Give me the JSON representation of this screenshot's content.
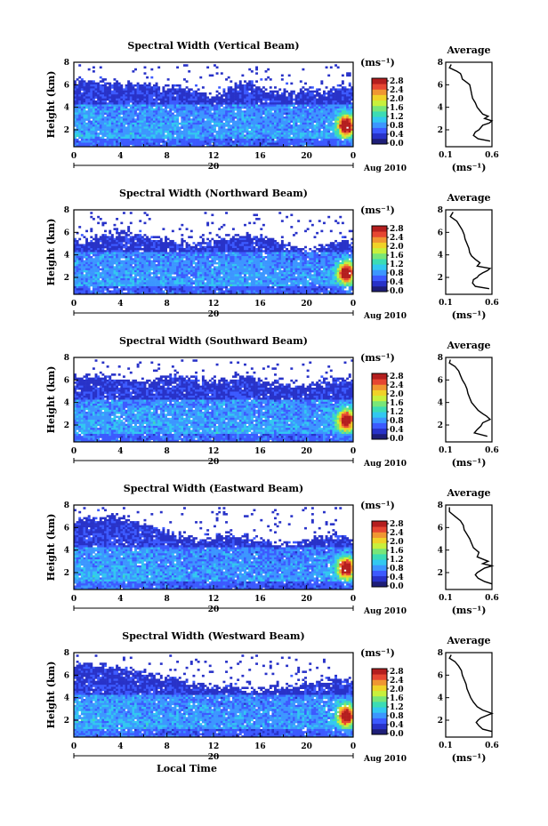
{
  "figure": {
    "xlabel": "Local Time",
    "date_label": "Aug 2010",
    "day_label": "20",
    "colorbar_unit": "(ms⁻¹)",
    "profile_unit": "(ms⁻¹)",
    "ylabel": "Height (km)",
    "colormap": [
      "#1e1e78",
      "#2832c8",
      "#3c5aff",
      "#3c96ff",
      "#32c8f0",
      "#3cdcb4",
      "#78e678",
      "#c8f03c",
      "#f0d228",
      "#f09632",
      "#e64632",
      "#b41e1e"
    ]
  },
  "chart_data": [
    {
      "type": "heatmap",
      "title": "Spectral Width (Vertical Beam)",
      "xlabel": "",
      "ylabel": "Height (km)",
      "x_ticks": [
        "0",
        "4",
        "8",
        "12",
        "16",
        "20",
        "0"
      ],
      "xlim": [
        0,
        24
      ],
      "y_ticks": [
        "8",
        "6",
        "4",
        "2"
      ],
      "ylim": [
        0.5,
        8
      ],
      "colorbar": {
        "unit": "(ms⁻¹)",
        "ticks": [
          "2.8",
          "2.4",
          "2.0",
          "1.6",
          "1.2",
          "0.8",
          "0.4",
          "0.0"
        ],
        "range": [
          0.0,
          2.8
        ]
      },
      "cover_top_km": [
        6.4,
        6.4,
        6.2,
        6.3,
        6.1,
        5.9,
        6.2,
        6.0,
        5.8,
        5.9,
        5.6,
        5.4,
        5.0,
        5.5,
        6.0,
        6.2,
        5.8,
        5.6,
        5.3,
        5.4,
        5.6,
        5.5,
        5.6,
        5.8,
        5.9
      ],
      "hotspot": {
        "time_h": 23.4,
        "height_km": 2.4,
        "value": 2.6
      },
      "profile": {
        "title": "Average",
        "x_ticks": [
          "0.1",
          "0.6"
        ],
        "xlim": [
          0.1,
          0.6
        ],
        "y_ticks": [
          "8",
          "6",
          "4",
          "2"
        ],
        "xlabel": "(ms⁻¹)",
        "height": [
          7.8,
          7.5,
          7.2,
          7.0,
          6.8,
          6.5,
          6.2,
          6.0,
          5.6,
          5.2,
          4.8,
          4.4,
          4.0,
          3.7,
          3.4,
          3.2,
          3.0,
          2.8,
          2.6,
          2.4,
          2.2,
          2.0,
          1.8,
          1.5,
          1.2,
          1.0
        ],
        "width": [
          0.16,
          0.14,
          0.22,
          0.26,
          0.27,
          0.28,
          0.33,
          0.36,
          0.37,
          0.38,
          0.39,
          0.42,
          0.44,
          0.47,
          0.5,
          0.56,
          0.52,
          0.6,
          0.57,
          0.5,
          0.48,
          0.46,
          0.42,
          0.4,
          0.45,
          0.58
        ]
      }
    },
    {
      "type": "heatmap",
      "title": "Spectral Width (Northward Beam)",
      "xlabel": "",
      "ylabel": "Height (km)",
      "x_ticks": [
        "0",
        "4",
        "8",
        "12",
        "16",
        "20",
        "0"
      ],
      "xlim": [
        0,
        24
      ],
      "y_ticks": [
        "8",
        "6",
        "4",
        "2"
      ],
      "ylim": [
        0.5,
        8
      ],
      "colorbar": {
        "unit": "(ms⁻¹)",
        "ticks": [
          "2.8",
          "2.4",
          "2.0",
          "1.6",
          "1.2",
          "0.8",
          "0.4",
          "0.0"
        ],
        "range": [
          0.0,
          2.8
        ]
      },
      "cover_top_km": [
        5.4,
        5.2,
        5.6,
        5.8,
        6.0,
        5.9,
        5.8,
        5.6,
        5.3,
        5.1,
        4.9,
        5.0,
        5.3,
        5.5,
        5.7,
        5.9,
        5.6,
        5.4,
        5.0,
        4.6,
        4.4,
        4.6,
        5.0,
        5.3,
        5.2
      ],
      "hotspot": {
        "time_h": 23.4,
        "height_km": 2.4,
        "value": 2.5
      },
      "profile": {
        "title": "Average",
        "x_ticks": [
          "0.1",
          "0.6"
        ],
        "xlim": [
          0.1,
          0.6
        ],
        "y_ticks": [
          "8",
          "6",
          "4",
          "2"
        ],
        "xlabel": "(ms⁻¹)",
        "height": [
          7.8,
          7.4,
          7.0,
          6.6,
          6.2,
          5.8,
          5.4,
          5.0,
          4.6,
          4.2,
          3.9,
          3.6,
          3.3,
          3.0,
          2.8,
          2.6,
          2.4,
          2.2,
          2.0,
          1.8,
          1.5,
          1.2,
          1.0
        ],
        "width": [
          0.18,
          0.15,
          0.22,
          0.25,
          0.28,
          0.3,
          0.31,
          0.33,
          0.35,
          0.36,
          0.38,
          0.42,
          0.47,
          0.44,
          0.58,
          0.55,
          0.5,
          0.46,
          0.44,
          0.4,
          0.39,
          0.42,
          0.57
        ]
      }
    },
    {
      "type": "heatmap",
      "title": "Spectral Width (Southward Beam)",
      "xlabel": "",
      "ylabel": "Height (km)",
      "x_ticks": [
        "0",
        "4",
        "8",
        "12",
        "16",
        "20",
        "0"
      ],
      "xlim": [
        0,
        24
      ],
      "y_ticks": [
        "8",
        "6",
        "4",
        "2"
      ],
      "ylim": [
        0.5,
        8
      ],
      "colorbar": {
        "unit": "(ms⁻¹)",
        "ticks": [
          "2.8",
          "2.4",
          "2.0",
          "1.6",
          "1.2",
          "0.8",
          "0.4",
          "0.0"
        ],
        "range": [
          0.0,
          2.8
        ]
      },
      "cover_top_km": [
        6.2,
        6.4,
        6.4,
        6.3,
        6.2,
        6.0,
        5.9,
        6.2,
        6.3,
        6.4,
        6.2,
        6.0,
        5.8,
        6.0,
        6.2,
        6.3,
        6.0,
        5.8,
        5.6,
        5.4,
        5.6,
        5.9,
        6.0,
        6.1,
        6.0
      ],
      "hotspot": {
        "time_h": 23.4,
        "height_km": 2.4,
        "value": 2.4
      },
      "profile": {
        "title": "Average",
        "x_ticks": [
          "0.1",
          "0.6"
        ],
        "xlim": [
          0.1,
          0.6
        ],
        "y_ticks": [
          "8",
          "6",
          "4",
          "2"
        ],
        "xlabel": "(ms⁻¹)",
        "height": [
          7.8,
          7.5,
          7.2,
          6.8,
          6.4,
          6.0,
          5.6,
          5.2,
          4.8,
          4.4,
          4.0,
          3.6,
          3.3,
          3.0,
          2.8,
          2.5,
          2.2,
          1.9,
          1.6,
          1.3,
          1.0
        ],
        "width": [
          0.15,
          0.14,
          0.2,
          0.24,
          0.26,
          0.28,
          0.31,
          0.33,
          0.34,
          0.36,
          0.38,
          0.42,
          0.45,
          0.5,
          0.54,
          0.58,
          0.5,
          0.48,
          0.44,
          0.41,
          0.55
        ]
      }
    },
    {
      "type": "heatmap",
      "title": "Spectral Width (Eastward Beam)",
      "xlabel": "",
      "ylabel": "Height (km)",
      "x_ticks": [
        "0",
        "4",
        "8",
        "12",
        "16",
        "20",
        "0"
      ],
      "xlim": [
        0,
        24
      ],
      "y_ticks": [
        "8",
        "6",
        "4",
        "2"
      ],
      "ylim": [
        0.5,
        8
      ],
      "colorbar": {
        "unit": "(ms⁻¹)",
        "ticks": [
          "2.8",
          "2.4",
          "2.0",
          "1.6",
          "1.2",
          "0.8",
          "0.4",
          "0.0"
        ],
        "range": [
          0.0,
          2.8
        ]
      },
      "cover_top_km": [
        6.6,
        6.8,
        6.8,
        7.0,
        6.9,
        6.6,
        6.4,
        6.0,
        5.6,
        5.3,
        5.0,
        4.8,
        5.1,
        5.4,
        5.2,
        5.0,
        4.8,
        4.6,
        4.4,
        4.6,
        4.8,
        5.2,
        5.4,
        5.2,
        5.0
      ],
      "hotspot": {
        "time_h": 23.4,
        "height_km": 2.4,
        "value": 2.5
      },
      "profile": {
        "title": "Average",
        "x_ticks": [
          "0.1",
          "0.6"
        ],
        "xlim": [
          0.1,
          0.6
        ],
        "y_ticks": [
          "8",
          "6",
          "4",
          "2"
        ],
        "xlabel": "(ms⁻¹)",
        "height": [
          7.8,
          7.4,
          7.0,
          6.6,
          6.2,
          5.8,
          5.4,
          5.0,
          4.6,
          4.2,
          3.8,
          3.4,
          3.0,
          2.8,
          2.6,
          2.4,
          2.2,
          2.0,
          1.8,
          1.5,
          1.2,
          1.0
        ],
        "width": [
          0.14,
          0.14,
          0.2,
          0.26,
          0.29,
          0.3,
          0.33,
          0.36,
          0.38,
          0.4,
          0.46,
          0.44,
          0.56,
          0.5,
          0.6,
          0.52,
          0.48,
          0.44,
          0.42,
          0.45,
          0.52,
          0.6
        ]
      }
    },
    {
      "type": "heatmap",
      "title": "Spectral Width (Westward Beam)",
      "xlabel": "Local Time",
      "ylabel": "Height (km)",
      "x_ticks": [
        "0",
        "4",
        "8",
        "12",
        "16",
        "20",
        "0"
      ],
      "xlim": [
        0,
        24
      ],
      "y_ticks": [
        "8",
        "6",
        "4",
        "2"
      ],
      "ylim": [
        0.5,
        8
      ],
      "colorbar": {
        "unit": "(ms⁻¹)",
        "ticks": [
          "2.8",
          "2.4",
          "2.0",
          "1.6",
          "1.2",
          "0.8",
          "0.4",
          "0.0"
        ],
        "range": [
          0.0,
          2.8
        ]
      },
      "cover_top_km": [
        6.8,
        7.2,
        7.0,
        6.8,
        6.6,
        6.5,
        6.2,
        6.0,
        5.8,
        5.6,
        5.4,
        5.2,
        5.0,
        5.1,
        5.0,
        4.8,
        4.7,
        4.8,
        4.9,
        5.0,
        5.2,
        5.4,
        5.6,
        5.5,
        5.3
      ],
      "hotspot": {
        "time_h": 23.4,
        "height_km": 2.4,
        "value": 2.6
      },
      "profile": {
        "title": "Average",
        "x_ticks": [
          "0.1",
          "0.6"
        ],
        "xlim": [
          0.1,
          0.6
        ],
        "y_ticks": [
          "8",
          "6",
          "4",
          "2"
        ],
        "xlabel": "(ms⁻¹)",
        "height": [
          7.8,
          7.5,
          7.2,
          6.8,
          6.4,
          6.0,
          5.6,
          5.2,
          4.8,
          4.4,
          4.0,
          3.6,
          3.2,
          2.9,
          2.6,
          2.4,
          2.2,
          2.0,
          1.8,
          1.5,
          1.2,
          1.0
        ],
        "width": [
          0.16,
          0.14,
          0.2,
          0.24,
          0.27,
          0.28,
          0.3,
          0.32,
          0.33,
          0.35,
          0.37,
          0.4,
          0.44,
          0.5,
          0.6,
          0.54,
          0.48,
          0.45,
          0.43,
          0.46,
          0.5,
          0.6
        ]
      }
    }
  ]
}
